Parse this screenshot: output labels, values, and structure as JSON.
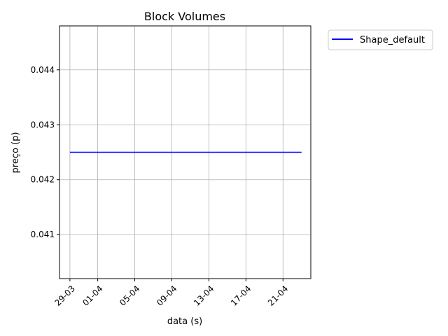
{
  "chart_data": {
    "type": "line",
    "title": "Block Volumes",
    "xlabel": "data (s)",
    "ylabel": "preço (p)",
    "x_tick_labels": [
      "29-03",
      "01-04",
      "05-04",
      "09-04",
      "13-04",
      "17-04",
      "21-04"
    ],
    "x_tick_dates": [
      "2023-03-29",
      "2023-04-01",
      "2023-04-05",
      "2023-04-09",
      "2023-04-13",
      "2023-04-17",
      "2023-04-21"
    ],
    "xlim": [
      "2023-03-27T21:00",
      "2023-04-24T00:00"
    ],
    "y_ticks": [
      0.041,
      0.042,
      0.043,
      0.044
    ],
    "ylim": [
      0.0402,
      0.0448
    ],
    "grid": true,
    "legend_position": "outside-top-right",
    "series": [
      {
        "name": "Shape_default",
        "color": "#0000ff",
        "x": [
          "2023-03-29",
          "2023-04-23"
        ],
        "y": [
          0.0425,
          0.0425
        ]
      }
    ]
  }
}
